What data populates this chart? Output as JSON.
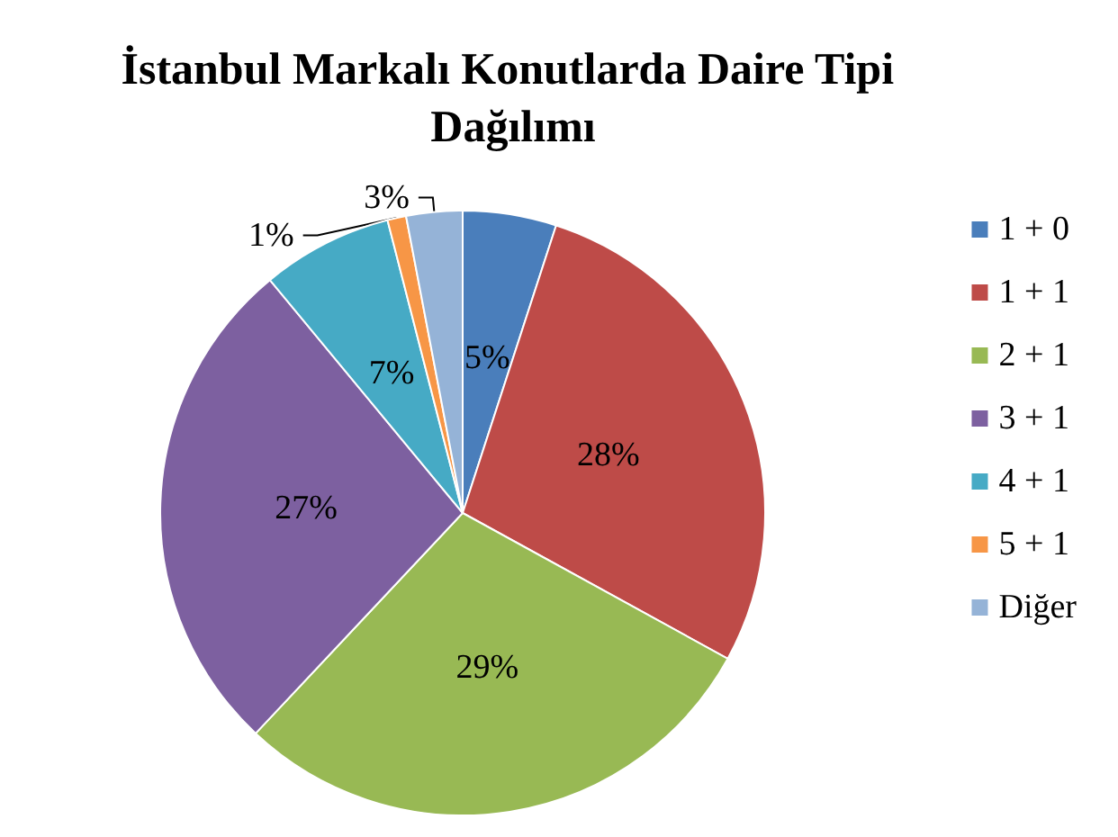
{
  "chart_data": {
    "type": "pie",
    "title": "İstanbul Markalı Konutlarda Daire Tipi Dağılımı",
    "categories": [
      "1 + 0",
      "1 + 1",
      "2 + 1",
      "3 + 1",
      "4 + 1",
      "5 + 1",
      "Diğer"
    ],
    "values": [
      5,
      28,
      29,
      27,
      7,
      1,
      3
    ],
    "value_labels": [
      "5%",
      "28%",
      "29%",
      "27%",
      "7%",
      "1%",
      "3%"
    ],
    "colors": [
      "#4a7ebb",
      "#be4b48",
      "#98b954",
      "#7d60a0",
      "#46aac5",
      "#f79646",
      "#95b3d7"
    ],
    "legend": "right"
  }
}
